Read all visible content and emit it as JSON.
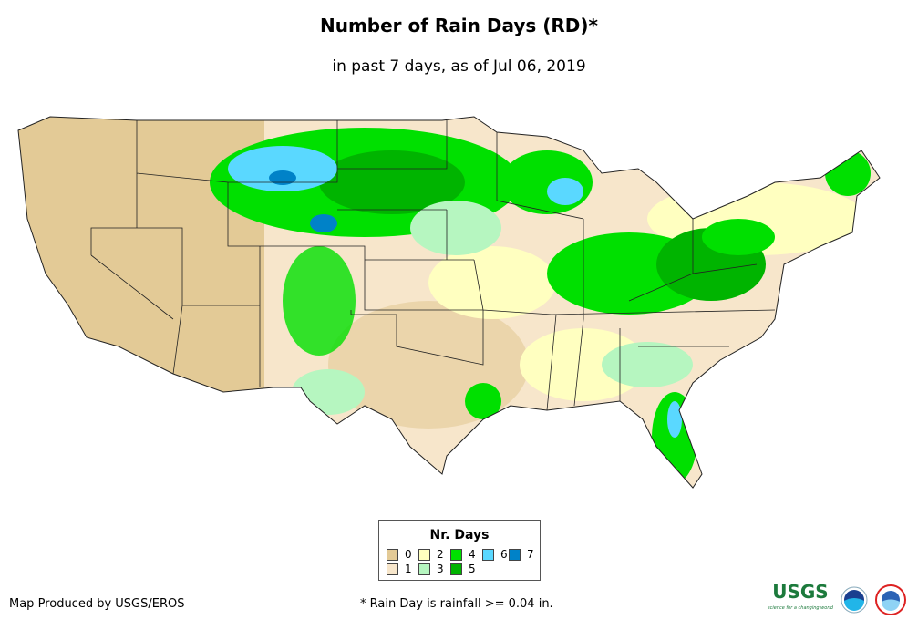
{
  "title": "Number of Rain Days (RD)*",
  "subtitle": "in past 7 days, as of Jul 06, 2019",
  "legend": {
    "title": "Nr. Days",
    "items": [
      {
        "label": "0",
        "color": "#e3ca96"
      },
      {
        "label": "1",
        "color": "#f7e6cb"
      },
      {
        "label": "2",
        "color": "#ffffc0"
      },
      {
        "label": "3",
        "color": "#b6f6c0"
      },
      {
        "label": "4",
        "color": "#00e000"
      },
      {
        "label": "5",
        "color": "#00b400"
      },
      {
        "label": "6",
        "color": "#5ad8ff"
      },
      {
        "label": "7",
        "color": "#0082c8"
      }
    ]
  },
  "credit": "Map Produced by USGS/EROS",
  "footnote": "* Rain Day is rainfall >= 0.04 in.",
  "logos": {
    "usgs": "USGS",
    "usgs_tagline": "science for a changing world",
    "noaa": "NOAA",
    "nws": "NATIONAL WEATHER SERVICE"
  }
}
